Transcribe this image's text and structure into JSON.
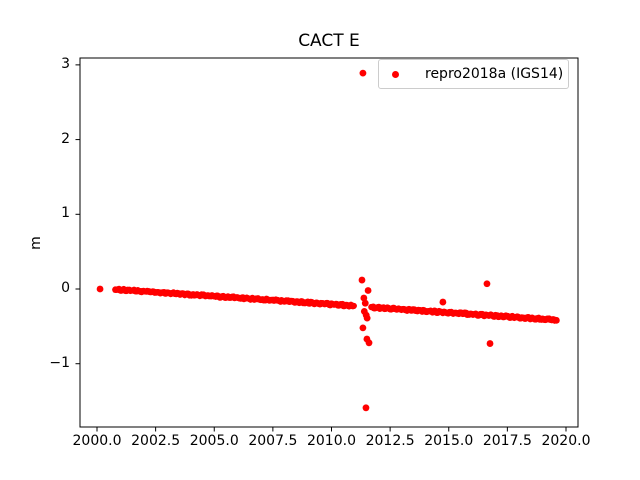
{
  "window": {
    "background": "#ffffff"
  },
  "chart_data": {
    "type": "scatter",
    "title": "CACT E",
    "xlabel": "",
    "ylabel": "m",
    "grid": false,
    "xlim": [
      1999.275,
      2020.512
    ],
    "ylim": [
      -1.847,
      3.092
    ],
    "xticks": {
      "values": [
        2000.0,
        2002.5,
        2005.0,
        2007.5,
        2010.0,
        2012.5,
        2015.0,
        2017.5,
        2020.0
      ],
      "labels": [
        "2000.0",
        "2002.5",
        "2005.0",
        "2007.5",
        "2010.0",
        "2012.5",
        "2015.0",
        "2017.5",
        "2020.0"
      ]
    },
    "yticks": {
      "values": [
        -1,
        0,
        1,
        2,
        3
      ],
      "labels": [
        "−1",
        "0",
        "1",
        "2",
        "3"
      ]
    },
    "legend": {
      "position": "upper right",
      "entries": [
        {
          "label": "repro2018a (IGS14)",
          "color": "#ff0000",
          "marker": "dot"
        }
      ]
    },
    "series": [
      {
        "name": "repro2018a (IGS14)",
        "color": "#ff0000",
        "marker": "dot",
        "marker_size_px": 7,
        "band_segments": [
          {
            "note": "dense daily solutions on linear trend",
            "x_start": 2000.78,
            "y_start": -0.005,
            "x_end": 2010.95,
            "y_end": -0.225
          },
          {
            "note": "post-2011 segment, small offset down",
            "x_start": 2011.7,
            "y_start": -0.245,
            "x_end": 2019.6,
            "y_end": -0.415
          }
        ],
        "points": [
          {
            "x": 2000.13,
            "y": 0.0
          },
          {
            "x": 2011.34,
            "y": 2.89
          },
          {
            "x": 2011.3,
            "y": 0.12
          },
          {
            "x": 2011.56,
            "y": -0.02
          },
          {
            "x": 2011.38,
            "y": -0.12
          },
          {
            "x": 2011.44,
            "y": -0.19
          },
          {
            "x": 2011.4,
            "y": -0.3
          },
          {
            "x": 2011.48,
            "y": -0.35
          },
          {
            "x": 2011.52,
            "y": -0.39
          },
          {
            "x": 2011.34,
            "y": -0.52
          },
          {
            "x": 2011.51,
            "y": -0.67
          },
          {
            "x": 2011.6,
            "y": -0.72
          },
          {
            "x": 2011.47,
            "y": -1.59
          },
          {
            "x": 2014.75,
            "y": -0.175
          },
          {
            "x": 2016.63,
            "y": 0.07
          },
          {
            "x": 2016.76,
            "y": -0.73
          }
        ]
      }
    ]
  }
}
